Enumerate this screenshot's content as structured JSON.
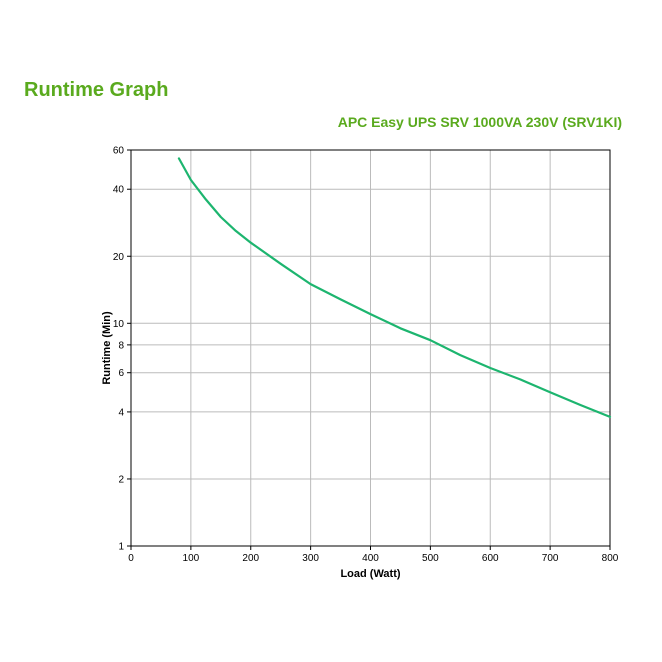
{
  "header": {
    "heading": "Runtime Graph"
  },
  "chart_data": {
    "type": "line",
    "title": "APC Easy UPS SRV 1000VA 230V (SRV1KI)",
    "xlabel": "Load (Watt)",
    "ylabel": "Runtime (Min)",
    "xlim": [
      0,
      800
    ],
    "ylim": [
      1,
      60
    ],
    "y_scale": "log",
    "grid": true,
    "x_ticks": [
      "0",
      "100",
      "200",
      "300",
      "400",
      "500",
      "600",
      "700",
      "800"
    ],
    "y_ticks": [
      "1",
      "2",
      "4",
      "6",
      "8",
      "10",
      "20",
      "40",
      "60"
    ],
    "series": [
      {
        "color": "#1db56f",
        "x": [
          80,
          100,
          125,
          150,
          175,
          200,
          250,
          300,
          350,
          400,
          450,
          500,
          550,
          600,
          650,
          700,
          750,
          800
        ],
        "y": [
          55,
          44,
          36,
          30,
          26,
          23,
          18.5,
          15,
          12.8,
          11,
          9.5,
          8.4,
          7.2,
          6.3,
          5.6,
          4.9,
          4.3,
          3.8
        ]
      }
    ]
  }
}
